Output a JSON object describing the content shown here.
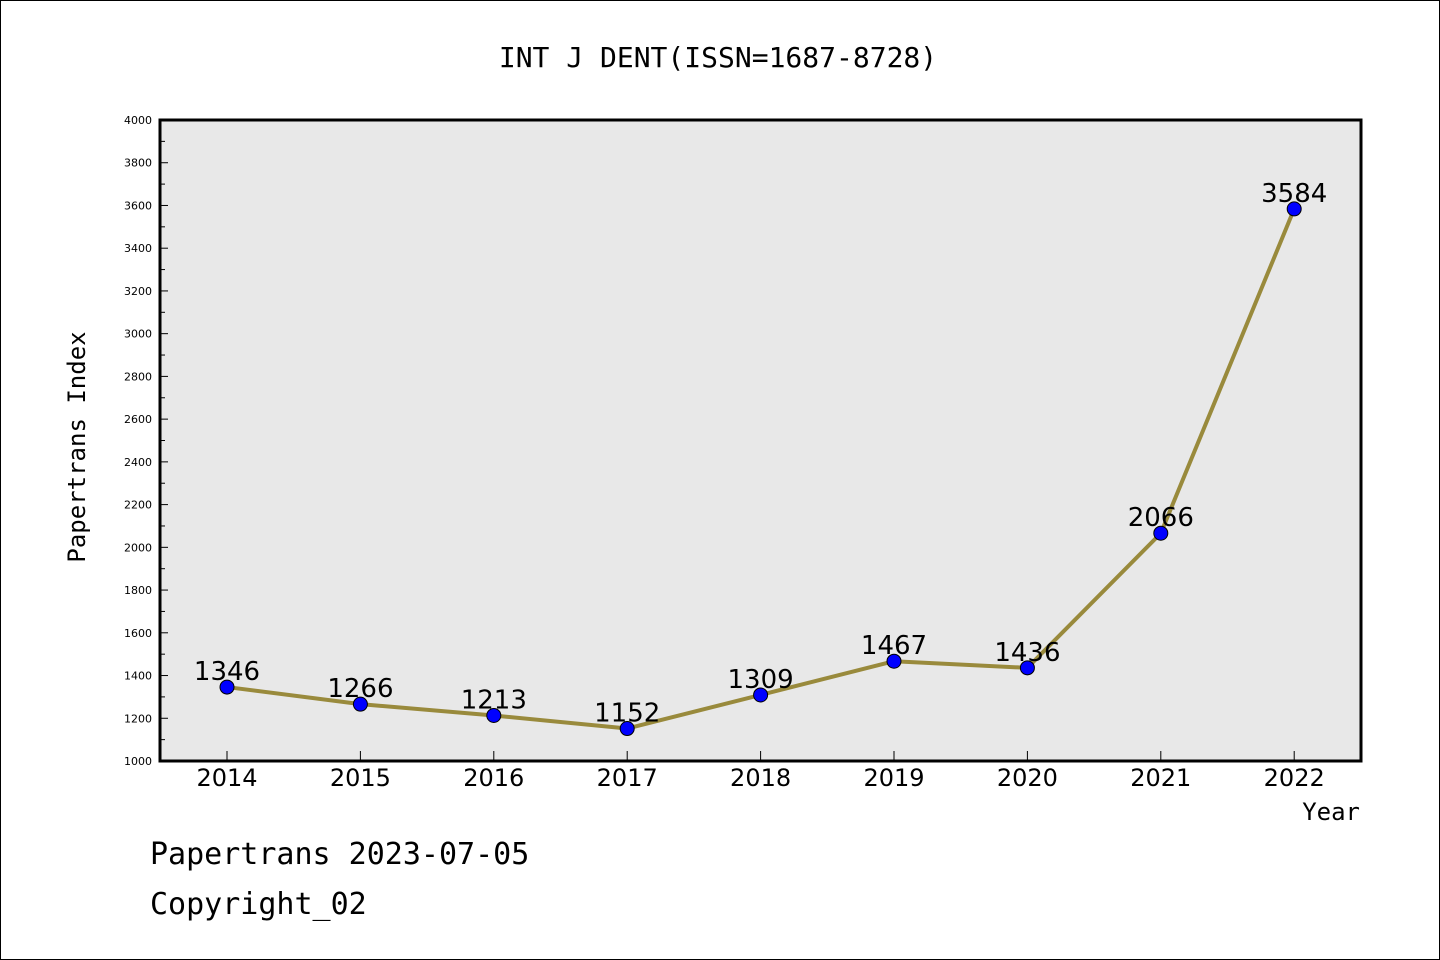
{
  "chart_data": {
    "type": "line",
    "title": "INT J DENT(ISSN=1687-8728)",
    "xlabel": "Year",
    "ylabel": "Papertrans Index",
    "categories": [
      "2014",
      "2015",
      "2016",
      "2017",
      "2018",
      "2019",
      "2020",
      "2021",
      "2022"
    ],
    "series": [
      {
        "values": [
          1346,
          1266,
          1213,
          1152,
          1309,
          1467,
          1436,
          2066,
          3584
        ]
      }
    ],
    "data_labels": [
      "1346",
      "1266",
      "1213",
      "1152",
      "1309",
      "1467",
      "1436",
      "2066",
      "3584"
    ],
    "ylim": [
      1000,
      4000
    ],
    "yticks": [
      "1000",
      "1200",
      "1400",
      "1600",
      "1800",
      "2000",
      "2200",
      "2400",
      "2600",
      "2800",
      "3000",
      "3200",
      "3400",
      "3600",
      "3800",
      "4000"
    ],
    "grid": false,
    "plot_background": "#e8e8e8",
    "line_color": "#998a3c",
    "marker_color": "#0000ff"
  },
  "footer": {
    "line1": "Papertrans 2023-07-05",
    "line2": "Copyright_02"
  }
}
